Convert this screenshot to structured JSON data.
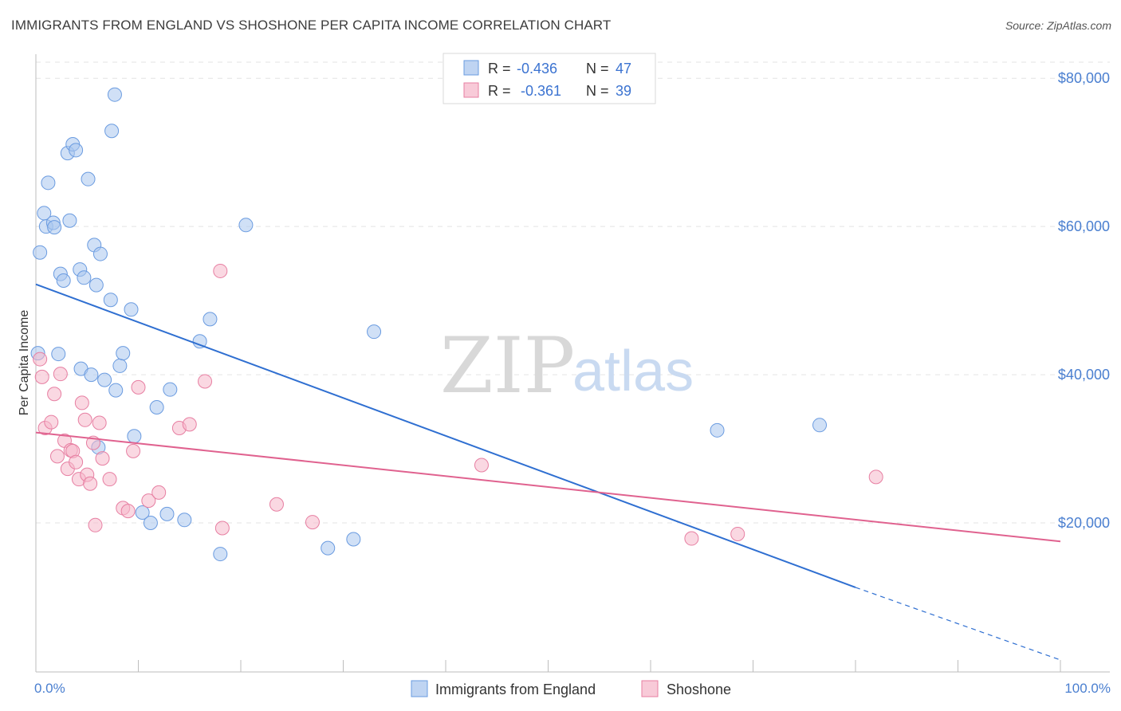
{
  "title": "IMMIGRANTS FROM ENGLAND VS SHOSHONE PER CAPITA INCOME CORRELATION CHART",
  "source": "Source: ZipAtlas.com",
  "watermark": {
    "zip": "ZIP",
    "atlas": "atlas"
  },
  "legend": {
    "r_label": "R =",
    "n_label": "N =",
    "rows": [
      {
        "r": "-0.436",
        "n": "47",
        "color": "#a9c6ee",
        "stroke": "#6a9be0"
      },
      {
        "r": "-0.361",
        "n": "39",
        "color": "#f6b8cb",
        "stroke": "#e77fa2"
      }
    ]
  },
  "bottom_legend": [
    {
      "label": "Immigrants from England",
      "color": "#a9c6ee",
      "stroke": "#6a9be0"
    },
    {
      "label": "Shoshone",
      "color": "#f6b8cb",
      "stroke": "#e77fa2"
    }
  ],
  "chart_data": {
    "type": "scatter",
    "title": "IMMIGRANTS FROM ENGLAND VS SHOSHONE PER CAPITA INCOME CORRELATION CHART",
    "xlabel": "",
    "ylabel": "Per Capita Income",
    "xlim": [
      0,
      100
    ],
    "ylim": [
      1500,
      82500
    ],
    "x_tick_labels": [
      "0.0%",
      "100.0%"
    ],
    "y_ticks": [
      20000,
      40000,
      60000,
      80000
    ],
    "y_tick_labels": [
      "$20,000",
      "$40,000",
      "$60,000",
      "$80,000"
    ],
    "grid": true,
    "legend_position": "top-center",
    "series": [
      {
        "name": "Immigrants from England",
        "color": "#a9c6ee",
        "stroke": "#6a9be0",
        "line_color": "#2f6fd1",
        "trend": {
          "x0": 0,
          "y0": 52200,
          "x1": 80,
          "y1": 11300,
          "dash_to_x": 100,
          "dash_to_y": 1500
        },
        "points": [
          [
            0.2,
            42900
          ],
          [
            0.4,
            56500
          ],
          [
            0.8,
            61800
          ],
          [
            1.0,
            60000
          ],
          [
            1.2,
            65900
          ],
          [
            1.7,
            60500
          ],
          [
            1.8,
            59900
          ],
          [
            2.2,
            42800
          ],
          [
            2.4,
            53600
          ],
          [
            2.7,
            52700
          ],
          [
            3.1,
            69900
          ],
          [
            3.3,
            60800
          ],
          [
            3.6,
            71100
          ],
          [
            3.9,
            70300
          ],
          [
            4.3,
            54200
          ],
          [
            4.4,
            40800
          ],
          [
            4.7,
            53100
          ],
          [
            5.1,
            66400
          ],
          [
            5.4,
            40000
          ],
          [
            5.7,
            57500
          ],
          [
            5.9,
            52100
          ],
          [
            6.1,
            30200
          ],
          [
            6.3,
            56300
          ],
          [
            6.7,
            39300
          ],
          [
            7.3,
            50100
          ],
          [
            7.4,
            72900
          ],
          [
            7.7,
            77800
          ],
          [
            7.8,
            37900
          ],
          [
            8.2,
            41200
          ],
          [
            8.5,
            42900
          ],
          [
            9.3,
            48800
          ],
          [
            9.6,
            31700
          ],
          [
            10.4,
            21400
          ],
          [
            11.2,
            20000
          ],
          [
            11.8,
            35600
          ],
          [
            12.8,
            21200
          ],
          [
            13.1,
            38000
          ],
          [
            14.5,
            20400
          ],
          [
            16.0,
            44500
          ],
          [
            17.0,
            47500
          ],
          [
            18.0,
            15800
          ],
          [
            20.5,
            60200
          ],
          [
            28.5,
            16600
          ],
          [
            31.0,
            17800
          ],
          [
            33.0,
            45800
          ],
          [
            66.5,
            32500
          ],
          [
            76.5,
            33200
          ]
        ]
      },
      {
        "name": "Shoshone",
        "color": "#f6b8cb",
        "stroke": "#e77fa2",
        "line_color": "#e0628f",
        "trend": {
          "x0": 0,
          "y0": 32200,
          "x1": 100,
          "y1": 17500
        },
        "points": [
          [
            0.4,
            42100
          ],
          [
            0.6,
            39700
          ],
          [
            0.9,
            32800
          ],
          [
            1.5,
            33600
          ],
          [
            1.8,
            37400
          ],
          [
            2.1,
            29000
          ],
          [
            2.4,
            40100
          ],
          [
            2.8,
            31100
          ],
          [
            3.1,
            27300
          ],
          [
            3.4,
            29800
          ],
          [
            3.6,
            29700
          ],
          [
            3.9,
            28200
          ],
          [
            4.2,
            25900
          ],
          [
            4.5,
            36200
          ],
          [
            4.8,
            33900
          ],
          [
            5.0,
            26500
          ],
          [
            5.3,
            25300
          ],
          [
            5.6,
            30800
          ],
          [
            5.8,
            19700
          ],
          [
            6.2,
            33500
          ],
          [
            6.5,
            28700
          ],
          [
            7.2,
            25900
          ],
          [
            8.5,
            22000
          ],
          [
            9.0,
            21600
          ],
          [
            9.5,
            29700
          ],
          [
            10.0,
            38300
          ],
          [
            11.0,
            23000
          ],
          [
            12.0,
            24100
          ],
          [
            14.0,
            32800
          ],
          [
            15.0,
            33300
          ],
          [
            16.5,
            39100
          ],
          [
            18.0,
            54000
          ],
          [
            18.2,
            19300
          ],
          [
            27.0,
            20100
          ],
          [
            43.5,
            27800
          ],
          [
            64.0,
            17900
          ],
          [
            68.5,
            18500
          ],
          [
            82.0,
            26200
          ],
          [
            23.5,
            22500
          ]
        ]
      }
    ]
  }
}
